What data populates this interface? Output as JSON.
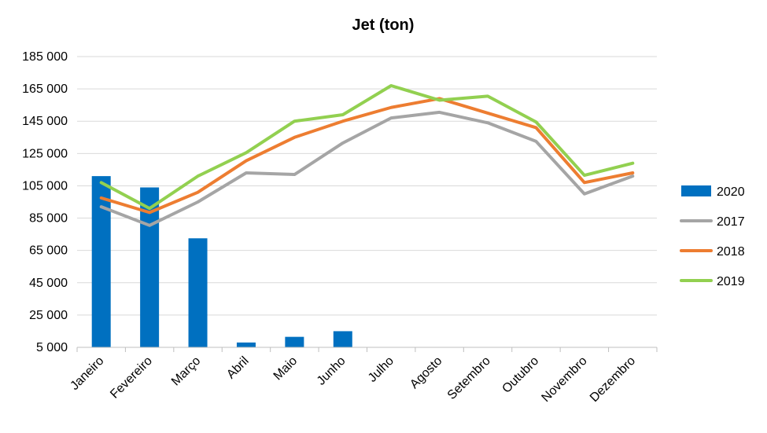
{
  "chart_data": {
    "type": "bar+line",
    "title": "Jet (ton)",
    "xlabel": "",
    "ylabel": "",
    "ylim": [
      5000,
      185000
    ],
    "yticks": [
      5000,
      25000,
      45000,
      65000,
      85000,
      105000,
      125000,
      145000,
      165000,
      185000
    ],
    "ytick_labels": [
      "5 000",
      "25 000",
      "45 000",
      "65 000",
      "85 000",
      "105 000",
      "125 000",
      "145 000",
      "165 000",
      "185 000"
    ],
    "categories": [
      "Janeiro",
      "Fevereiro",
      "Março",
      "Abril",
      "Maio",
      "Junho",
      "Julho",
      "Agosto",
      "Setembro",
      "Outubro",
      "Novembro",
      "Dezembro"
    ],
    "grid": true,
    "legend_position": "right",
    "series": [
      {
        "name": "2020",
        "kind": "bar",
        "color": "#0070C0",
        "values": [
          111000,
          104000,
          72500,
          8000,
          11500,
          15000,
          null,
          null,
          null,
          null,
          null,
          null
        ]
      },
      {
        "name": "2017",
        "kind": "line",
        "color": "#A5A5A5",
        "values": [
          92000,
          80500,
          95000,
          113000,
          112000,
          131500,
          147000,
          150500,
          144000,
          132500,
          100000,
          111000
        ]
      },
      {
        "name": "2018",
        "kind": "line",
        "color": "#ED7D31",
        "values": [
          97500,
          88500,
          101000,
          120500,
          135000,
          145000,
          153500,
          159000,
          150000,
          141000,
          107000,
          113000
        ]
      },
      {
        "name": "2019",
        "kind": "line",
        "color": "#92D050",
        "values": [
          107000,
          91000,
          111000,
          125500,
          145000,
          149000,
          167000,
          158000,
          160500,
          144500,
          111500,
          119000
        ]
      }
    ]
  }
}
